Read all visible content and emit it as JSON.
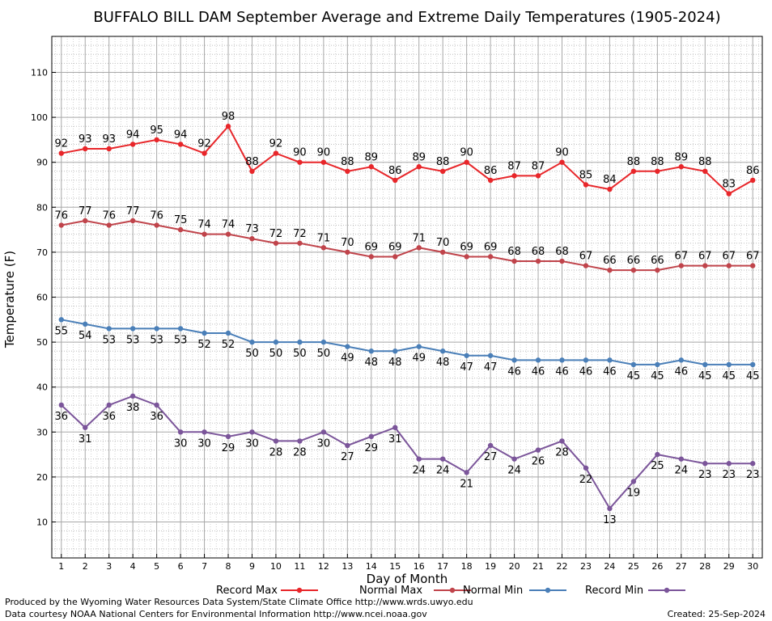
{
  "chart_data": {
    "type": "line",
    "title": "BUFFALO BILL DAM September Average and Extreme Daily Temperatures (1905-2024)",
    "xlabel": "Day of Month",
    "ylabel": "Temperature (F)",
    "x": [
      1,
      2,
      3,
      4,
      5,
      6,
      7,
      8,
      9,
      10,
      11,
      12,
      13,
      14,
      15,
      16,
      17,
      18,
      19,
      20,
      21,
      22,
      23,
      24,
      25,
      26,
      27,
      28,
      29,
      30
    ],
    "xlim": [
      0.6,
      30.4
    ],
    "ylim": [
      2,
      118
    ],
    "yticks": [
      10,
      20,
      30,
      40,
      50,
      60,
      70,
      80,
      90,
      100,
      110
    ],
    "grid": true,
    "legend_position": "bottom",
    "series": [
      {
        "name": "Record Max",
        "color": "#e8262a",
        "label_position": "above",
        "values": [
          92,
          93,
          93,
          94,
          95,
          94,
          92,
          98,
          88,
          92,
          90,
          90,
          88,
          89,
          86,
          89,
          88,
          90,
          86,
          87,
          87,
          90,
          85,
          84,
          88,
          88,
          89,
          88,
          83,
          86
        ]
      },
      {
        "name": "Normal Max",
        "color": "#c0444b",
        "label_position": "above",
        "values": [
          76,
          77,
          76,
          77,
          76,
          75,
          74,
          74,
          73,
          72,
          72,
          71,
          70,
          69,
          69,
          71,
          70,
          69,
          69,
          68,
          68,
          68,
          67,
          66,
          66,
          66,
          67,
          67,
          67,
          67
        ]
      },
      {
        "name": "Normal Min",
        "color": "#4a7fb8",
        "label_position": "below",
        "values": [
          55,
          54,
          53,
          53,
          53,
          53,
          52,
          52,
          50,
          50,
          50,
          50,
          49,
          48,
          48,
          49,
          48,
          47,
          47,
          46,
          46,
          46,
          46,
          46,
          45,
          45,
          46,
          45,
          45,
          45
        ]
      },
      {
        "name": "Record Min",
        "color": "#7b559a",
        "label_position": "below",
        "values": [
          36,
          31,
          36,
          38,
          36,
          30,
          30,
          29,
          30,
          28,
          28,
          30,
          27,
          29,
          31,
          24,
          24,
          21,
          27,
          24,
          26,
          28,
          22,
          13,
          19,
          25,
          24,
          23,
          23,
          23
        ]
      }
    ]
  },
  "footer": {
    "produced_by": "Produced by the Wyoming Water Resources Data System/State Climate Office http://www.wrds.uwyo.edu",
    "data_courtesy": "Data courtesy NOAA National Centers for Environmental Information http://www.ncei.noaa.gov",
    "created": "Created:  25-Sep-2024"
  }
}
